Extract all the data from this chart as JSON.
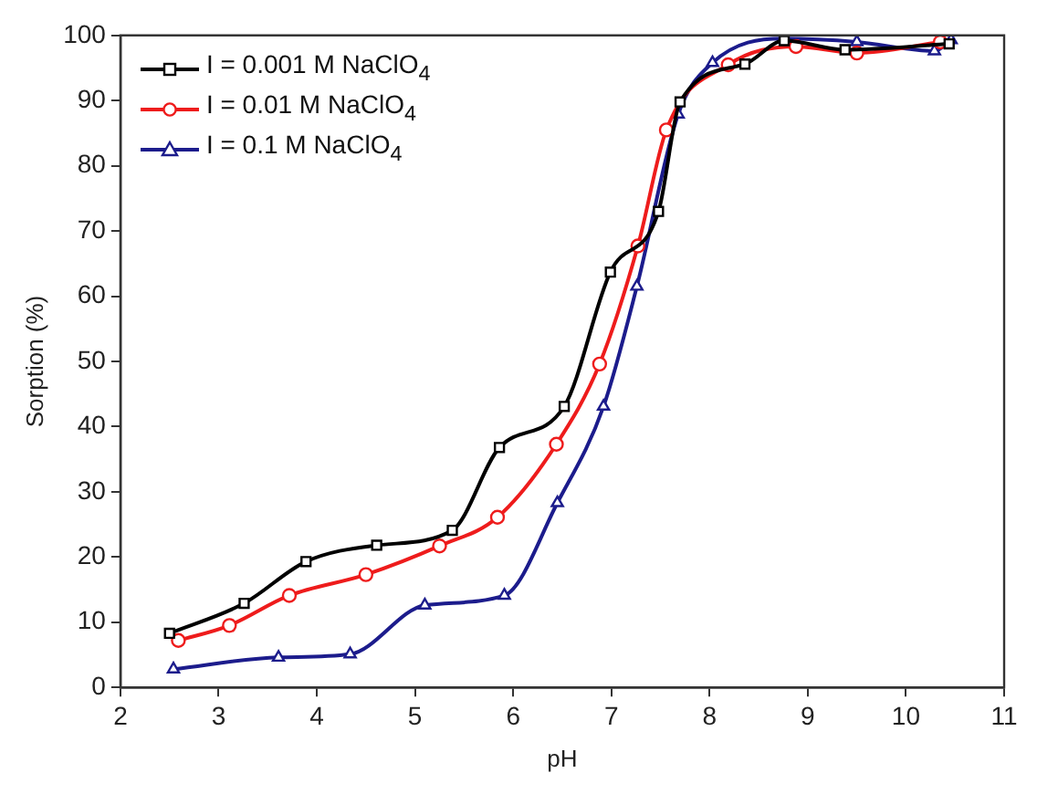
{
  "chart_data": {
    "type": "line",
    "xlabel": "pH",
    "ylabel": "Sorption (%)",
    "xlim": [
      2,
      11
    ],
    "xticks": [
      2,
      3,
      4,
      5,
      6,
      7,
      8,
      9,
      10,
      11
    ],
    "ylim": [
      0,
      100
    ],
    "yticks": [
      0,
      10,
      20,
      30,
      40,
      50,
      60,
      70,
      80,
      90,
      100
    ],
    "grid": false,
    "legend": "top left",
    "line_style": "solid",
    "series": [
      {
        "name": "I = 0.001 M NaClO$_{4}$",
        "color": "#000000",
        "marker": "square",
        "x": [
          2.5,
          3.26,
          3.89,
          4.61,
          5.38,
          5.86,
          6.52,
          6.99,
          7.48,
          7.7,
          8.36,
          8.76,
          9.38,
          10.44
        ],
        "values": [
          8.3,
          12.9,
          19.3,
          21.8,
          24.1,
          36.8,
          43.1,
          63.7,
          73.0,
          89.8,
          95.6,
          99.2,
          97.8,
          98.7
        ]
      },
      {
        "name": "I = 0.01 M NaClO$_{4}$",
        "color": "#ee1c1c",
        "marker": "circle",
        "x": [
          2.59,
          3.11,
          3.72,
          4.5,
          5.25,
          5.84,
          6.44,
          6.88,
          7.27,
          7.56,
          8.19,
          8.88,
          9.5,
          10.35
        ],
        "values": [
          7.2,
          9.5,
          14.1,
          17.3,
          21.7,
          26.1,
          37.3,
          49.6,
          67.7,
          85.5,
          95.5,
          98.3,
          97.3,
          99.0
        ]
      },
      {
        "name": "I = 0.1 M NaClO$_{4}$",
        "color": "#1c1c8c",
        "marker": "triangle",
        "x": [
          2.54,
          3.61,
          4.34,
          5.1,
          5.91,
          6.45,
          6.92,
          7.26,
          7.68,
          8.03,
          8.75,
          9.5,
          10.29,
          10.46
        ],
        "values": [
          2.8,
          4.6,
          5.1,
          12.6,
          14.1,
          28.3,
          43.1,
          61.5,
          87.9,
          95.8,
          99.5,
          99.0,
          97.6,
          99.3
        ]
      }
    ]
  }
}
